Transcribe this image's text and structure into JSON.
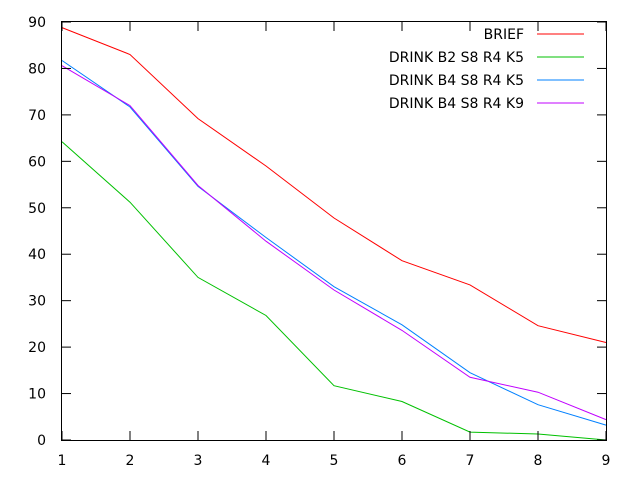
{
  "chart_data": {
    "type": "line",
    "title": "",
    "xlabel": "",
    "ylabel": "",
    "xlim": [
      1,
      9
    ],
    "ylim": [
      0,
      90
    ],
    "x_ticks": [
      1,
      2,
      3,
      4,
      5,
      6,
      7,
      8,
      9
    ],
    "y_ticks": [
      0,
      10,
      20,
      30,
      40,
      50,
      60,
      70,
      80,
      90
    ],
    "grid": false,
    "legend_position": "top-right",
    "x": [
      1,
      2,
      3,
      4,
      5,
      6,
      7,
      8,
      9
    ],
    "series": [
      {
        "name": "BRIEF",
        "color": "#ff0000",
        "values": [
          88.8,
          83.0,
          69.2,
          59.0,
          47.8,
          38.6,
          33.4,
          24.6,
          21.0
        ]
      },
      {
        "name": "DRINK B2 S8 R4 K5",
        "color": "#00c000",
        "values": [
          64.2,
          51.2,
          35.0,
          26.8,
          11.7,
          8.3,
          1.7,
          1.3,
          0.0
        ]
      },
      {
        "name": "DRINK B4 S8 R4 K5",
        "color": "#0080ff",
        "values": [
          81.7,
          71.7,
          54.6,
          43.6,
          33.0,
          24.8,
          14.5,
          7.6,
          3.2
        ]
      },
      {
        "name": "DRINK B4 S8 R4 K9",
        "color": "#c000ff",
        "values": [
          80.6,
          72.0,
          54.8,
          42.8,
          32.3,
          23.6,
          13.5,
          10.3,
          4.4
        ]
      }
    ]
  }
}
